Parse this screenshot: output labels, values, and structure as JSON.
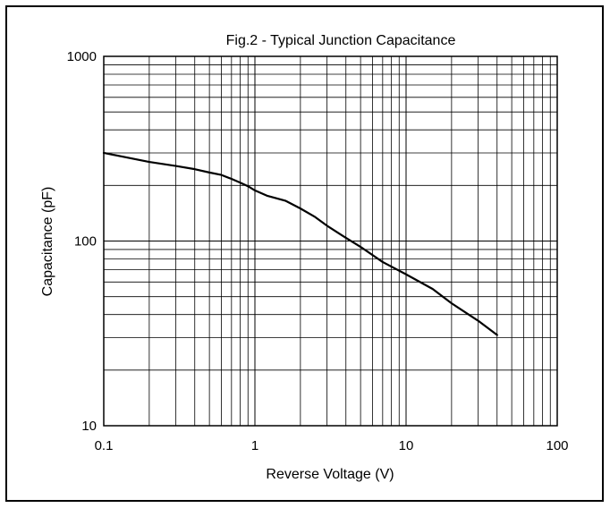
{
  "chart_data": {
    "type": "line",
    "title": "Fig.2 - Typical  Junction Capacitance",
    "xlabel": "Reverse Voltage (V)",
    "ylabel": "Capacitance (pF)",
    "xscale": "log",
    "yscale": "log",
    "xlim": [
      0.1,
      100
    ],
    "ylim": [
      10,
      1000
    ],
    "xticks": [
      "0.1",
      "1",
      "10",
      "100"
    ],
    "yticks": [
      "10",
      "100",
      "1000"
    ],
    "grid": true,
    "legend": "none",
    "series": [
      {
        "x": [
          0.1,
          0.2,
          0.3,
          0.4,
          0.5,
          0.6,
          0.7,
          0.8,
          0.9,
          1.0,
          1.2,
          1.6,
          2.0,
          2.5,
          3.0,
          4.0,
          5.0,
          7.0,
          10,
          15,
          20,
          30,
          40
        ],
        "y": [
          300,
          268,
          255,
          245,
          235,
          228,
          217,
          207,
          198,
          188,
          176,
          165,
          150,
          135,
          121,
          104,
          93,
          77,
          66,
          55,
          46,
          37,
          31
        ]
      }
    ]
  }
}
